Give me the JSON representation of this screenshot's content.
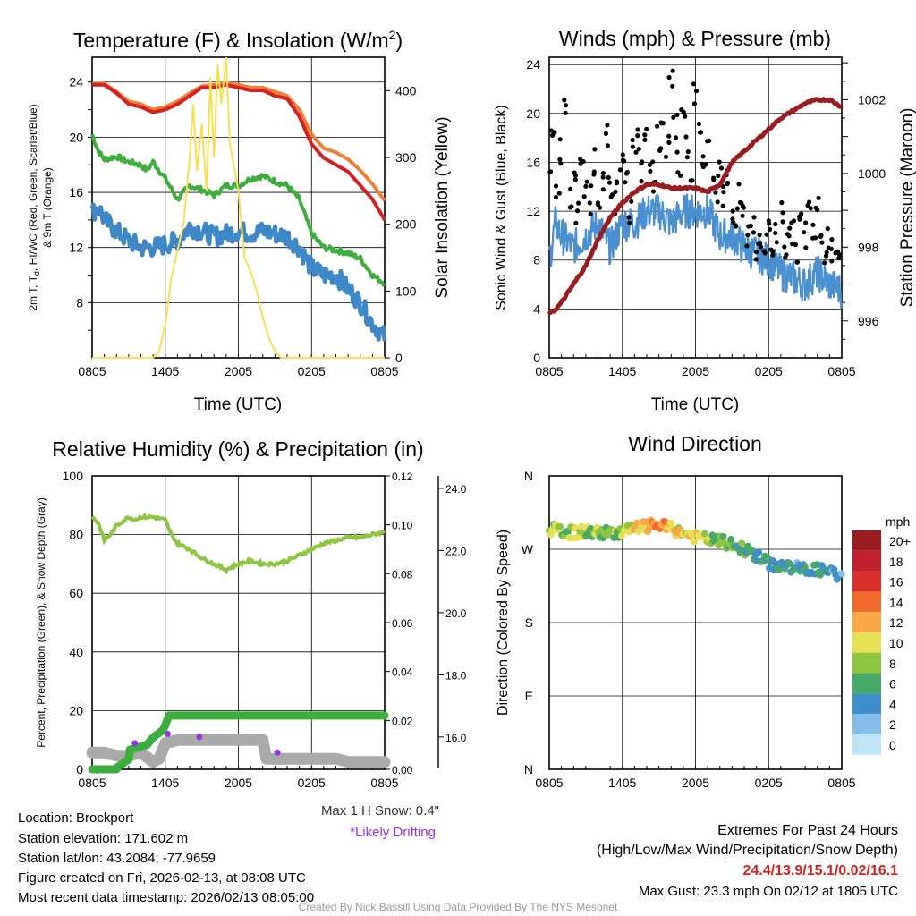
{
  "chart_data": [
    {
      "type": "line",
      "title": "Temperature (F) & Insolation (W/m2)",
      "title_main": "Temperature (F) & Insolation (W/m",
      "title_sup": "2",
      "title_end": ")",
      "xlabel": "Time (UTC)",
      "ylabel_lines": [
        "2m T, T",
        "d",
        ", HI/WC (Red, Green, Scarlet/Blue)",
        "& 9m T (Orange)"
      ],
      "y2label": "Solar Insolation (Yellow)",
      "xticks": [
        "0805",
        "1405",
        "2005",
        "0205",
        "0805"
      ],
      "yticks": [
        "8",
        "12",
        "16",
        "20",
        "24"
      ],
      "y2ticks": [
        "0",
        "100",
        "200",
        "300",
        "400"
      ],
      "ylim": [
        4,
        25.8
      ],
      "y2lim": [
        0,
        450
      ],
      "xlim": [
        0,
        24
      ],
      "series": [
        {
          "name": "9m T",
          "color": "#f08030",
          "x": [
            0,
            1,
            2,
            3,
            4,
            5,
            6,
            7,
            8,
            9,
            10,
            11,
            12,
            13,
            14,
            15,
            16,
            17,
            18,
            19,
            20,
            21,
            22,
            23,
            24
          ],
          "y": [
            23.9,
            23.9,
            23.3,
            22.6,
            22.4,
            22,
            22.2,
            22.6,
            23.2,
            23.7,
            23.8,
            23.9,
            23.8,
            23.6,
            23.6,
            23.3,
            23,
            22,
            20.2,
            19.2,
            18.9,
            18.4,
            17.6,
            16.6,
            15.4
          ]
        },
        {
          "name": "2m T",
          "color": "#d42020",
          "x": [
            0,
            1,
            2,
            3,
            4,
            5,
            6,
            7,
            8,
            9,
            10,
            11,
            12,
            13,
            14,
            15,
            16,
            17,
            18,
            19,
            20,
            21,
            22,
            23,
            24
          ],
          "y": [
            23.8,
            23.8,
            23.2,
            22.4,
            22.2,
            21.8,
            22,
            22.4,
            23,
            23.6,
            23.6,
            23.8,
            23.6,
            23.4,
            23.4,
            23,
            22.8,
            21.5,
            19.5,
            18.5,
            18,
            17.5,
            16.5,
            15.5,
            14
          ]
        },
        {
          "name": "Dewpoint",
          "color": "#3cae3c",
          "x": [
            0,
            0.5,
            1,
            2,
            3,
            4,
            4.5,
            5,
            6,
            7,
            8,
            9,
            10,
            11,
            12,
            13,
            14,
            15,
            16,
            17,
            18,
            19,
            20,
            21,
            22,
            23,
            24
          ],
          "y": [
            20.2,
            19,
            18.4,
            18.6,
            18.2,
            18,
            17.6,
            18.2,
            17,
            15.5,
            16.5,
            16.2,
            15.8,
            16.5,
            16.5,
            17,
            17.2,
            16.8,
            16.5,
            15.5,
            13,
            12,
            11.8,
            11.6,
            11.2,
            10,
            9.4
          ]
        },
        {
          "name": "HI/WC",
          "color": "#3f88c8",
          "x": [
            0,
            0.5,
            1,
            2,
            3,
            4,
            5,
            6,
            7,
            8,
            9,
            10,
            11,
            12,
            13,
            14,
            15,
            16,
            17,
            18,
            19,
            20,
            21,
            22,
            23,
            24
          ],
          "y": [
            14.5,
            15,
            14,
            13.2,
            12.5,
            12,
            12,
            12.2,
            12.5,
            13.5,
            13.2,
            12.8,
            13,
            13.2,
            13,
            13.2,
            13,
            12.8,
            12,
            10.5,
            10,
            10,
            9,
            8,
            6.5,
            5.5
          ]
        },
        {
          "name": "Solar Insolation",
          "color": "#f8e050",
          "axis": "right",
          "x": [
            0,
            5,
            5.5,
            6,
            6.5,
            7,
            7.5,
            8,
            8.3,
            8.6,
            9,
            9.4,
            9.7,
            10,
            10.3,
            10.6,
            11,
            11.3,
            12,
            12.5,
            13,
            13.5,
            14,
            14.5,
            15,
            15.5,
            24
          ],
          "y": [
            0,
            0,
            10,
            50,
            120,
            160,
            200,
            300,
            380,
            280,
            350,
            250,
            420,
            300,
            440,
            380,
            450,
            320,
            250,
            150,
            130,
            100,
            60,
            30,
            10,
            0,
            0
          ]
        }
      ]
    },
    {
      "type": "line",
      "title": "Winds (mph) & Pressure (mb)",
      "xlabel": "Time (UTC)",
      "ylabel": "Sonic Wind & Gust (Blue, Black)",
      "y2label": "Station Pressure (Maroon)",
      "xticks": [
        "0805",
        "1405",
        "2005",
        "0205",
        "0805"
      ],
      "yticks": [
        "0",
        "4",
        "8",
        "12",
        "16",
        "20",
        "24"
      ],
      "y2ticks": [
        "996",
        "998",
        "1000",
        "1002"
      ],
      "ylim": [
        0,
        24.6
      ],
      "y2lim": [
        995,
        1003.15
      ],
      "xlim": [
        0,
        24
      ],
      "series": [
        {
          "name": "Sonic Wind",
          "color": "#4a90d0",
          "x": [
            0,
            0.5,
            1,
            2,
            3,
            4,
            5,
            6,
            7,
            8,
            9,
            10,
            11,
            12,
            13,
            14,
            15,
            16,
            17,
            18,
            19,
            20,
            21,
            22,
            23,
            24
          ],
          "y": [
            8,
            11,
            10,
            9,
            10,
            11,
            9,
            11,
            11,
            12,
            12,
            11,
            12,
            12,
            12,
            10,
            10,
            9,
            8.5,
            8,
            7,
            6.5,
            6,
            7,
            6,
            5.5
          ]
        },
        {
          "name": "Gust",
          "color": "#000000",
          "x": [
            0,
            0.33,
            0.67,
            1,
            1.33,
            1.67,
            2,
            2.33,
            2.67,
            3,
            3.33,
            3.67,
            4,
            4.33,
            4.67,
            5,
            5.33,
            5.67,
            6,
            6.33,
            6.67,
            7,
            7.33,
            7.67,
            8,
            8.33,
            8.67,
            9,
            9.33,
            9.67,
            10,
            10.33,
            10.67,
            11,
            11.33,
            11.67,
            12,
            12.33,
            12.67,
            13,
            13.33,
            13.67,
            14,
            14.33,
            14.67,
            15,
            15.33,
            15.67,
            16,
            16.33,
            16.67,
            17,
            17.33,
            17.67,
            18,
            18.33,
            18.67,
            19,
            19.33,
            19.67,
            20,
            20.33,
            20.67,
            21,
            21.33,
            21.67,
            22,
            22.33,
            22.67,
            23,
            23.33,
            23.67,
            24
          ],
          "y": [
            15,
            19,
            14,
            17,
            20,
            13,
            15,
            12,
            17,
            14,
            13,
            16,
            12,
            15,
            18,
            14,
            13,
            15,
            16,
            14,
            12,
            17,
            18,
            15,
            19,
            16,
            14,
            18,
            20,
            17,
            23,
            19,
            16,
            21,
            17,
            15,
            22,
            18,
            16,
            17,
            15,
            14,
            16,
            13,
            15,
            12,
            11,
            13,
            12,
            10,
            11,
            9,
            10,
            9,
            11,
            9,
            10,
            12,
            9,
            11,
            10,
            9,
            11,
            10,
            12,
            11,
            13,
            10,
            9,
            10,
            9,
            8.5,
            7.5
          ]
        },
        {
          "name": "Station Pressure",
          "color": "#9b1b1e",
          "axis": "right",
          "x": [
            0,
            0.5,
            1,
            2,
            3,
            4,
            5,
            6,
            7,
            8,
            9,
            10,
            11,
            12,
            13,
            14,
            15,
            16,
            17,
            18,
            19,
            20,
            21,
            22,
            23,
            24
          ],
          "y": [
            996.2,
            996.3,
            996.5,
            997,
            997.5,
            998.2,
            998.8,
            999.2,
            999.5,
            999.7,
            999.7,
            999.6,
            999.6,
            999.6,
            999.5,
            999.7,
            1000.3,
            1000.6,
            1000.9,
            1001.2,
            1001.5,
            1001.7,
            1001.9,
            1002,
            1002,
            1001.8
          ]
        }
      ]
    },
    {
      "type": "line",
      "title": "Relative Humidity (%) & Precipitation (in)",
      "ylabel": "Percent, Precipitation (Green), & Snow Depth (Gray)",
      "xticks": [
        "0805",
        "1405",
        "2005",
        "0205",
        "0805"
      ],
      "yticks": [
        "0",
        "20",
        "40",
        "60",
        "80",
        "100"
      ],
      "y2ticks": [
        "0.00",
        "0.02",
        "0.04",
        "0.06",
        "0.08",
        "0.10",
        "0.12"
      ],
      "y3ticks": [
        "16.0",
        "18.0",
        "20.0",
        "22.0",
        "24.0"
      ],
      "ylim": [
        0,
        100
      ],
      "y2lim": [
        0,
        0.12
      ],
      "y3lim": [
        14.96,
        24.4
      ],
      "xlim": [
        0,
        24
      ],
      "series": [
        {
          "name": "Relative Humidity",
          "color": "#8cc63f",
          "x": [
            0,
            0.5,
            1,
            1.5,
            2,
            3,
            3.5,
            4,
            5,
            6,
            6.5,
            7,
            8,
            9,
            10,
            11,
            12,
            13,
            14,
            15,
            16,
            17,
            18,
            19,
            20,
            21,
            22,
            23,
            24
          ],
          "y": [
            86,
            84,
            78,
            80,
            83,
            86,
            85,
            86,
            86,
            85,
            80,
            77,
            75,
            72,
            70,
            68,
            70,
            71,
            70,
            70,
            71,
            73,
            75,
            77,
            78,
            79,
            79,
            80,
            81
          ]
        },
        {
          "name": "Snow Depth",
          "color": "#aaaaaa",
          "axis": "snow",
          "x": [
            0,
            1,
            2,
            3,
            4,
            5,
            5.5,
            6,
            7,
            8,
            9,
            10,
            11,
            12,
            13,
            14,
            14.3,
            15,
            16,
            17,
            18,
            19,
            20,
            21,
            22,
            23,
            24
          ],
          "y": [
            15.5,
            15.5,
            15.4,
            15.4,
            15.5,
            15.2,
            15.3,
            15.8,
            15.9,
            15.9,
            15.9,
            15.9,
            15.9,
            15.9,
            15.9,
            15.9,
            15.3,
            15.3,
            15.3,
            15.3,
            15.3,
            15.3,
            15.3,
            15.2,
            15.2,
            15.2,
            15.2
          ]
        },
        {
          "name": "Precipitation",
          "color": "#3cae3c",
          "axis": "right",
          "x": [
            0,
            2,
            2.1,
            3,
            3.1,
            4.5,
            5,
            5.8,
            6,
            6.3,
            24
          ],
          "y": [
            0,
            0,
            0.001,
            0.004,
            0.008,
            0.01,
            0.013,
            0.016,
            0.018,
            0.022,
            0.022
          ]
        },
        {
          "name": "Likely Drifting",
          "color": "#9933ee",
          "axis": "snow",
          "x": [
            3.5,
            6.2,
            8.8,
            15.2
          ],
          "y": [
            15.8,
            16.1,
            16.0,
            15.5
          ]
        }
      ],
      "note_snow": "Max 1 H Snow: 0.4\"",
      "note_drift": "*Likely Drifting"
    },
    {
      "type": "scatter",
      "title": "Wind Direction",
      "ylabel": "Direction (Colored By Speed)",
      "xticks": [
        "0805",
        "1405",
        "2005",
        "0205",
        "0805"
      ],
      "yticks": [
        "N",
        "E",
        "S",
        "W",
        "N"
      ],
      "ylim": [
        0,
        360
      ],
      "xlim": [
        0,
        24
      ],
      "direction": {
        "x": [
          0,
          1,
          2,
          3,
          4,
          5,
          6,
          7,
          8,
          9,
          10,
          11,
          12,
          13,
          14,
          15,
          16,
          17,
          18,
          19,
          20,
          21,
          22,
          23,
          24
        ],
        "deg": [
          295,
          292,
          290,
          292,
          290,
          290,
          292,
          295,
          298,
          300,
          295,
          290,
          285,
          282,
          280,
          275,
          270,
          262,
          252,
          250,
          248,
          245,
          245,
          242,
          235
        ],
        "speed": [
          10,
          8,
          10,
          9,
          9,
          8,
          10,
          12,
          13,
          14,
          12,
          11,
          12,
          10,
          8,
          7,
          7,
          7,
          6,
          6,
          5,
          6,
          6,
          5,
          4
        ]
      },
      "colorbar": {
        "title": "mph",
        "labels": [
          "20+",
          "18",
          "16",
          "14",
          "12",
          "10",
          "8",
          "6",
          "4",
          "2",
          "0"
        ],
        "colors": [
          "#9b1b1e",
          "#c0202a",
          "#d9302b",
          "#f06a2c",
          "#f9a845",
          "#e6e052",
          "#8cc63f",
          "#48a867",
          "#3e8ec9",
          "#86bde6",
          "#bde4f7"
        ]
      }
    }
  ],
  "station": {
    "location": "Location: Brockport",
    "elevation": "Station elevation: 171.602 m",
    "latlon": "Station lat/lon: 43.2084; -77.9659",
    "created": "Figure created on Fri, 2026-02-13, at 08:08 UTC",
    "recent": "Most recent data timestamp: 2026/02/13 08:05:00"
  },
  "extremes": {
    "title": "Extremes For Past 24 Hours",
    "subtitle": "(High/Low/Max Wind/Precipitation/Snow Depth)",
    "values": "24.4/13.9/15.1/0.02/16.1",
    "gust": "Max Gust: 23.3 mph On 02/12 at 1805 UTC",
    "color": "#d42020"
  },
  "credit": "Created By Nick Bassill Using Data Provided By The NYS Mesonet"
}
